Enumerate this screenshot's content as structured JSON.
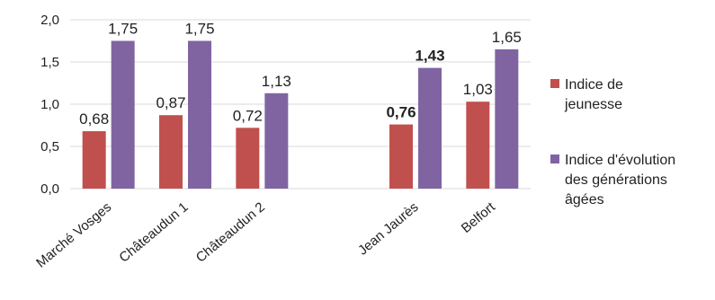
{
  "chart_data": {
    "type": "bar",
    "categories": [
      "Marché Vosges",
      "Châteaudun 1",
      "Châteaudun 2",
      "",
      "Jean Jaurès",
      "Belfort"
    ],
    "series": [
      {
        "name": "Indice de jeunesse",
        "legend_lines": [
          "Indice de",
          "jeunesse"
        ],
        "color": "#c0504d",
        "values": [
          0.68,
          0.87,
          0.72,
          null,
          0.76,
          1.03
        ],
        "labels": [
          "0,68",
          "0,87",
          "0,72",
          "",
          "0,76",
          "1,03"
        ],
        "bold": [
          false,
          false,
          false,
          false,
          true,
          false
        ]
      },
      {
        "name": "Indice d'évolution des générations âgées",
        "legend_lines": [
          "Indice d'évolution",
          "des générations",
          "âgées"
        ],
        "color": "#8064a2",
        "values": [
          1.75,
          1.75,
          1.13,
          null,
          1.43,
          1.65
        ],
        "labels": [
          "1,75",
          "1,75",
          "1,13",
          "",
          "1,43",
          "1,65"
        ],
        "bold": [
          false,
          false,
          false,
          false,
          true,
          false
        ]
      }
    ],
    "yticks": [
      "0,0",
      "0,5",
      "1,0",
      "1,5",
      "2,0"
    ],
    "ylim": [
      0,
      2
    ],
    "grid": true,
    "legend_position": "right",
    "title": "",
    "xlabel": "",
    "ylabel": ""
  }
}
